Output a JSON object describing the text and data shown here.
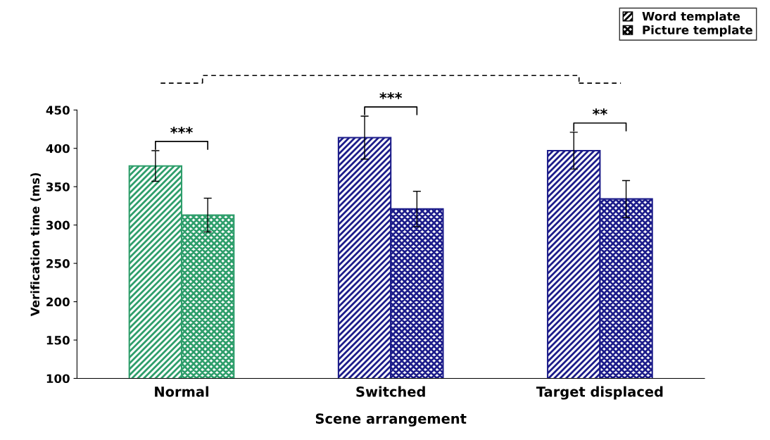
{
  "chart_data": {
    "type": "bar",
    "xlabel": "Scene arrangement",
    "ylabel": "Verification time (ms)",
    "categories": [
      "Normal",
      "Switched",
      "Target displaced"
    ],
    "series": [
      {
        "name": "Word template",
        "colors": [
          "#2e9e6b",
          "#1c1c8a",
          "#1c1c8a"
        ],
        "values": [
          377,
          414,
          397
        ],
        "errors": [
          20,
          28,
          24
        ]
      },
      {
        "name": "Picture template",
        "colors": [
          "#2e9e6b",
          "#1c1c8a",
          "#1c1c8a"
        ],
        "values": [
          313,
          321,
          334
        ],
        "errors": [
          22,
          23,
          24
        ]
      }
    ],
    "ylim": [
      100,
      450
    ],
    "yticks": [
      100,
      150,
      200,
      250,
      300,
      350,
      400,
      450
    ],
    "annotations": [
      "***",
      "***",
      "**"
    ],
    "legend": "top right",
    "grid": false
  }
}
